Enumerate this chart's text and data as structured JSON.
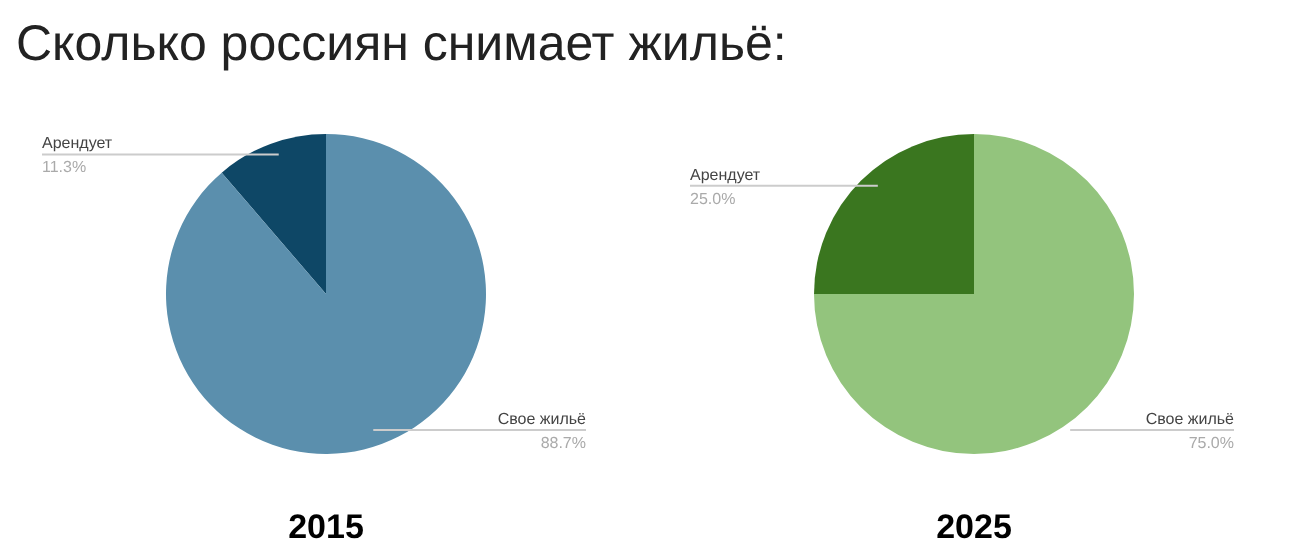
{
  "chart_data": [
    {
      "type": "pie",
      "title": "Сколько россиян снимает жильё:",
      "xlabel": "2015",
      "categories": [
        "Арендует",
        "Свое жильё"
      ],
      "values": [
        11.3,
        88.7
      ],
      "value_labels": [
        "11.3%",
        "88.7%"
      ],
      "colors": [
        "#0e4766",
        "#5b8fad"
      ]
    },
    {
      "type": "pie",
      "xlabel": "2025",
      "categories": [
        "Арендует",
        "Свое жильё"
      ],
      "values": [
        25.0,
        75.0
      ],
      "value_labels": [
        "25.0%",
        "75.0%"
      ],
      "colors": [
        "#3a761f",
        "#93c47d"
      ]
    }
  ]
}
